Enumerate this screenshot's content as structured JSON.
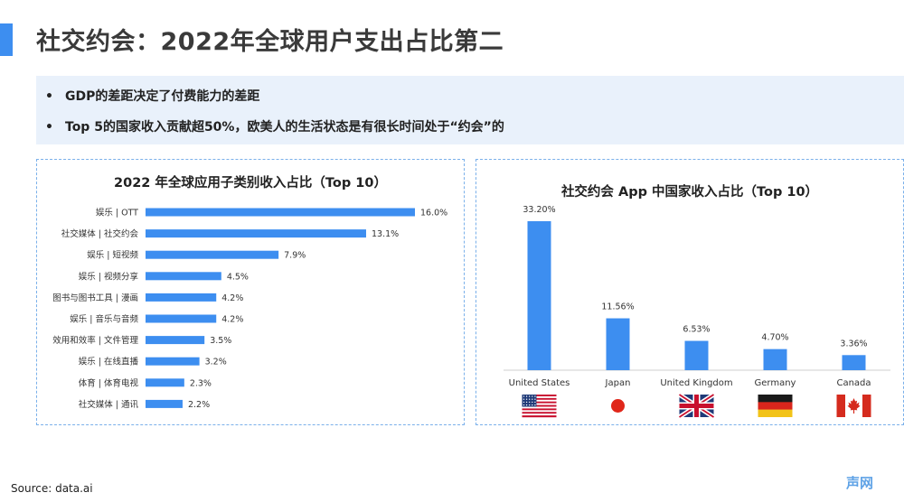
{
  "page": {
    "title": "社交约会：2022年全球用户支出占比第二",
    "bullets": [
      "GDP的差距决定了付费能力的差距",
      "Top 5的国家收入贡献超50%，欧美人的生活状态是有很长时间处于“约会”的"
    ],
    "bullet_symbol": "•",
    "source": "Source: data.ai",
    "logo_text": "声网",
    "accent_color": "#3d8ef0",
    "bar_color": "#3d8ef0"
  },
  "chart_data": [
    {
      "type": "bar",
      "orientation": "horizontal",
      "title": "2022 年全球应用子类别收入占比（Top 10）",
      "categories": [
        "娱乐 | OTT",
        "社交媒体 | 社交约会",
        "娱乐 | 短视频",
        "娱乐 | 视频分享",
        "图书与图书工具 | 漫画",
        "娱乐 | 音乐与音频",
        "效用和效率 | 文件管理",
        "娱乐 | 在线直播",
        "体育 | 体育电视",
        "社交媒体 | 通讯"
      ],
      "values": [
        16.0,
        13.1,
        7.9,
        4.5,
        4.2,
        4.2,
        3.5,
        3.2,
        2.3,
        2.2
      ],
      "value_labels": [
        "16.0%",
        "13.1%",
        "7.9%",
        "4.5%",
        "4.2%",
        "4.2%",
        "3.5%",
        "3.2%",
        "2.3%",
        "2.2%"
      ],
      "xlim": [
        0,
        16.0
      ],
      "grid": false
    },
    {
      "type": "bar",
      "orientation": "vertical",
      "title": "社交约会 App 中国家收入占比（Top 10）",
      "categories": [
        "United States",
        "Japan",
        "United Kingdom",
        "Germany",
        "Canada"
      ],
      "flags": [
        "us-flag-icon",
        "japan-flag-icon",
        "uk-flag-icon",
        "germany-flag-icon",
        "canada-flag-icon"
      ],
      "values": [
        33.2,
        11.56,
        6.53,
        4.7,
        3.36
      ],
      "value_labels": [
        "33.20%",
        "11.56%",
        "6.53%",
        "4.70%",
        "3.36%"
      ],
      "ylim": [
        0,
        33.2
      ],
      "grid": false
    }
  ]
}
